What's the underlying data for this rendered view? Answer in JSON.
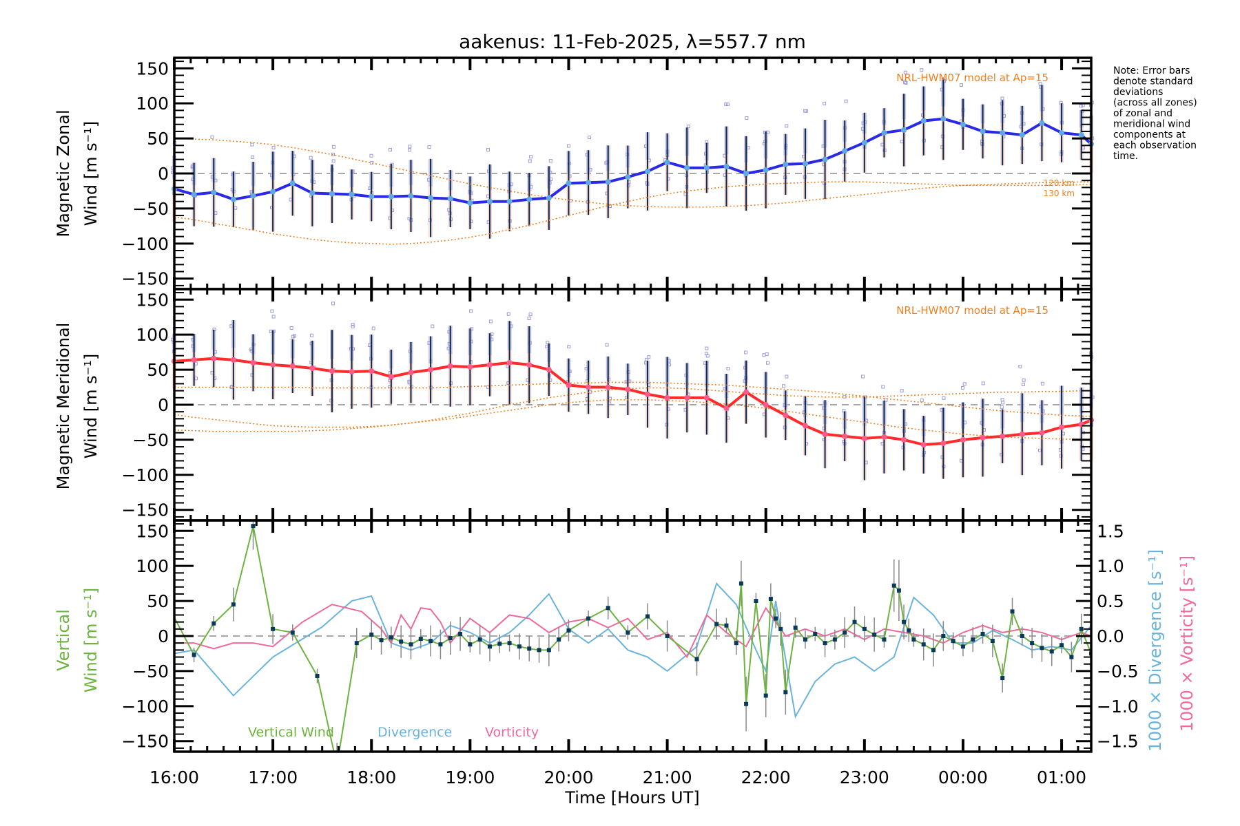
{
  "chart_data": [
    {
      "type": "line",
      "panel": "zonal",
      "title": "aakenus: 11-Feb-2025, λ=557.7 nm",
      "ylabel_line1": "Magnetic Zonal",
      "ylabel_line2": "Wind [m s⁻¹]",
      "ylim": [
        -165,
        165
      ],
      "yticks": [
        -150,
        -100,
        -50,
        0,
        50,
        100,
        150
      ],
      "model_label": "NRL-HWM07 model at Ap=15",
      "model_height_labels": [
        "120 km",
        "130 km"
      ],
      "x": [
        16.0,
        16.2,
        16.4,
        16.6,
        16.8,
        17.0,
        17.2,
        17.4,
        17.6,
        17.8,
        18.0,
        18.2,
        18.4,
        18.6,
        18.8,
        19.0,
        19.2,
        19.4,
        19.6,
        19.8,
        20.0,
        20.2,
        20.4,
        20.6,
        20.8,
        21.0,
        21.2,
        21.4,
        21.6,
        21.8,
        22.0,
        22.2,
        22.4,
        22.6,
        22.8,
        23.0,
        23.2,
        23.4,
        23.6,
        23.8,
        24.0,
        24.2,
        24.4,
        24.6,
        24.8,
        25.0,
        25.2,
        25.3
      ],
      "series": [
        {
          "name": "Zonal wind",
          "color": "#2a2ae6",
          "values": [
            -22,
            -30,
            -27,
            -37,
            -32,
            -26,
            -14,
            -28,
            -29,
            -30,
            -33,
            -33,
            -32,
            -35,
            -36,
            -42,
            -40,
            -40,
            -37,
            -35,
            -14,
            -13,
            -12,
            -5,
            3,
            16,
            8,
            8,
            10,
            0,
            5,
            13,
            14,
            20,
            32,
            44,
            58,
            62,
            75,
            78,
            70,
            60,
            58,
            55,
            72,
            58,
            55,
            42
          ]
        },
        {
          "name": "Model 120 km",
          "color": "#f08020",
          "values": [
            50,
            49,
            48,
            46,
            44,
            41,
            37,
            32,
            27,
            21,
            15,
            9,
            3,
            -3,
            -9,
            -15,
            -20,
            -25,
            -30,
            -34,
            -38,
            -41,
            -44,
            -46,
            -47,
            -48,
            -48,
            -48,
            -47,
            -46,
            -44,
            -42,
            -39,
            -36,
            -33,
            -30,
            -27,
            -24,
            -21,
            -19,
            -17,
            -16,
            -15,
            -14,
            -13,
            -13,
            -12,
            -12
          ]
        },
        {
          "name": "Model 130 km",
          "color": "#f08020",
          "values": [
            -62,
            -66,
            -71,
            -76,
            -81,
            -86,
            -90,
            -94,
            -97,
            -99,
            -100,
            -101,
            -100,
            -98,
            -95,
            -91,
            -86,
            -80,
            -74,
            -67,
            -60,
            -53,
            -46,
            -40,
            -34,
            -29,
            -25,
            -22,
            -19,
            -17,
            -15,
            -14,
            -13,
            -12,
            -12,
            -12,
            -13,
            -14,
            -15,
            -16,
            -17,
            -17,
            -17,
            -17,
            -17,
            -17,
            -16,
            -16
          ]
        }
      ]
    },
    {
      "type": "line",
      "panel": "meridional",
      "ylabel_line1": "Magnetic Meridional",
      "ylabel_line2": "Wind [m s⁻¹]",
      "ylim": [
        -165,
        165
      ],
      "yticks": [
        -150,
        -100,
        -50,
        0,
        50,
        100,
        150
      ],
      "model_label": "NRL-HWM07 model at Ap=15",
      "x": [
        16.0,
        16.2,
        16.4,
        16.6,
        16.8,
        17.0,
        17.2,
        17.4,
        17.6,
        17.8,
        18.0,
        18.2,
        18.4,
        18.6,
        18.8,
        19.0,
        19.2,
        19.4,
        19.6,
        19.8,
        20.0,
        20.2,
        20.4,
        20.6,
        20.8,
        21.0,
        21.2,
        21.4,
        21.6,
        21.8,
        22.0,
        22.2,
        22.4,
        22.6,
        22.8,
        23.0,
        23.2,
        23.4,
        23.6,
        23.8,
        24.0,
        24.2,
        24.4,
        24.6,
        24.8,
        25.0,
        25.2,
        25.3
      ],
      "series": [
        {
          "name": "Meridional wind",
          "color": "#ff2a2a",
          "values": [
            62,
            64,
            66,
            64,
            60,
            57,
            55,
            52,
            48,
            47,
            48,
            40,
            46,
            50,
            55,
            54,
            57,
            60,
            57,
            50,
            28,
            25,
            25,
            22,
            15,
            10,
            10,
            10,
            -5,
            18,
            0,
            -15,
            -30,
            -42,
            -45,
            -48,
            -46,
            -50,
            -57,
            -55,
            -50,
            -47,
            -45,
            -42,
            -40,
            -32,
            -28,
            -22
          ]
        },
        {
          "name": "Model 120 km",
          "color": "#f08020",
          "values": [
            25,
            25,
            25,
            25,
            25,
            25,
            25,
            24,
            24,
            24,
            24,
            24,
            24,
            24,
            25,
            26,
            27,
            28,
            29,
            30,
            31,
            31,
            32,
            32,
            32,
            31,
            30,
            29,
            28,
            26,
            24,
            22,
            20,
            18,
            15,
            12,
            9,
            6,
            3,
            0,
            -3,
            -6,
            -9,
            -11,
            -13,
            -15,
            -16,
            -17
          ]
        },
        {
          "name": "Model 130 km",
          "color": "#f08020",
          "values": [
            -14,
            -18,
            -21,
            -24,
            -27,
            -30,
            -31,
            -32,
            -32,
            -32,
            -31,
            -29,
            -26,
            -22,
            -17,
            -12,
            -6,
            0,
            5,
            10,
            14,
            18,
            21,
            23,
            24,
            24,
            23,
            21,
            19,
            17,
            15,
            13,
            12,
            11,
            11,
            11,
            12,
            13,
            14,
            15,
            16,
            17,
            18,
            18,
            19,
            19,
            20,
            20
          ]
        },
        {
          "name": "Model low",
          "color": "#f08020",
          "values": [
            -36,
            -37,
            -38,
            -38,
            -38,
            -38,
            -38,
            -37,
            -36,
            -34,
            -32,
            -29,
            -26,
            -23,
            -20,
            -16,
            -12,
            -8,
            -4,
            0,
            3,
            5,
            7,
            7,
            7,
            6,
            5,
            3,
            1,
            -2,
            -5,
            -9,
            -13,
            -17,
            -21,
            -25,
            -29,
            -33,
            -36,
            -39,
            -42,
            -44,
            -46,
            -47,
            -48,
            -49,
            -49,
            -50
          ]
        }
      ]
    },
    {
      "type": "line",
      "panel": "vertical",
      "ylabel_line1": "Vertical",
      "ylabel_line2": "Wind [m s⁻¹]",
      "right_ylabel_div": "1000 × Divergence [s⁻¹]",
      "right_ylabel_vort": "1000 × Vorticity [s⁻¹]",
      "ylim": [
        -165,
        165
      ],
      "yticks": [
        -150,
        -100,
        -50,
        0,
        50,
        100,
        150
      ],
      "y2lim": [
        -1.65,
        1.65
      ],
      "y2ticks": [
        "-1.5",
        "-1.0",
        "-0.5",
        "0.0",
        "0.5",
        "1.0",
        "1.5"
      ],
      "xlabel": "Time [Hours UT]",
      "xticks": [
        "16:00",
        "17:00",
        "18:00",
        "19:00",
        "20:00",
        "21:00",
        "22:00",
        "23:00",
        "00:00",
        "01:00"
      ],
      "xlim": [
        16.0,
        25.3
      ],
      "legend": [
        "Vertical Wind",
        "Divergence",
        "Vorticity"
      ],
      "vertical": {
        "color": "#6db33f",
        "x": [
          15.95,
          16.2,
          16.4,
          16.6,
          16.8,
          17.0,
          17.2,
          17.45,
          17.65,
          17.85,
          18.0,
          18.1,
          18.2,
          18.3,
          18.4,
          18.5,
          18.6,
          18.7,
          18.8,
          18.9,
          19.0,
          19.1,
          19.2,
          19.3,
          19.4,
          19.5,
          19.6,
          19.7,
          19.8,
          19.9,
          20.0,
          20.2,
          20.4,
          20.6,
          20.8,
          21.0,
          21.3,
          21.5,
          21.6,
          21.7,
          21.75,
          21.8,
          21.9,
          22.0,
          22.05,
          22.1,
          22.15,
          22.2,
          22.3,
          22.4,
          22.5,
          22.6,
          22.7,
          22.8,
          22.9,
          23.0,
          23.1,
          23.2,
          23.3,
          23.35,
          23.4,
          23.45,
          23.5,
          23.6,
          23.7,
          23.8,
          23.9,
          24.0,
          24.1,
          24.2,
          24.3,
          24.4,
          24.5,
          24.6,
          24.7,
          24.8,
          24.9,
          25.0,
          25.1,
          25.2,
          25.3
        ],
        "values": [
          40,
          -27,
          18,
          45,
          157,
          10,
          5,
          -57,
          -185,
          -10,
          2,
          -6,
          -2,
          -8,
          -12,
          -4,
          -7,
          -12,
          -3,
          3,
          -12,
          -5,
          -15,
          -11,
          -10,
          -15,
          -18,
          -20,
          -20,
          -5,
          8,
          25,
          40,
          5,
          28,
          0,
          -33,
          17,
          15,
          -10,
          75,
          -97,
          50,
          -85,
          53,
          25,
          10,
          -80,
          12,
          -5,
          3,
          -10,
          -5,
          5,
          20,
          10,
          2,
          -5,
          72,
          65,
          20,
          8,
          -5,
          -12,
          -20,
          0,
          -7,
          -15,
          -5,
          3,
          -7,
          -60,
          35,
          0,
          -10,
          -17,
          -22,
          -13,
          -30,
          10,
          -25
        ]
      },
      "divergence": {
        "color": "#6ab4dc",
        "x": [
          16.0,
          16.2,
          16.6,
          17.0,
          17.5,
          17.8,
          18.0,
          18.2,
          18.4,
          18.6,
          18.8,
          19.0,
          19.2,
          19.4,
          19.6,
          19.8,
          20.0,
          20.2,
          20.4,
          20.6,
          20.8,
          21.0,
          21.3,
          21.5,
          21.7,
          21.9,
          22.0,
          22.1,
          22.3,
          22.5,
          22.7,
          22.9,
          23.1,
          23.3,
          23.5,
          23.7,
          23.9,
          24.1,
          24.3,
          24.5,
          24.7,
          24.9,
          25.1,
          25.3
        ],
        "values": [
          -0.25,
          -0.2,
          -0.85,
          -0.3,
          0.13,
          0.5,
          0.57,
          -0.1,
          -0.2,
          -0.1,
          0.15,
          0.05,
          -0.1,
          0.05,
          0.3,
          0.6,
          0.1,
          -0.1,
          0.1,
          -0.2,
          -0.3,
          -0.5,
          -0.15,
          0.75,
          0.45,
          -0.2,
          -0.5,
          0.5,
          -1.15,
          -0.65,
          -0.4,
          -0.3,
          -0.5,
          -0.3,
          0.55,
          0.3,
          -0.1,
          -0.1,
          0.08,
          -0.05,
          -0.2,
          -0.15,
          -0.2,
          0.15
        ]
      },
      "vorticity": {
        "color": "#f0699b",
        "x": [
          16.0,
          16.2,
          16.4,
          16.6,
          16.8,
          17.0,
          17.3,
          17.6,
          17.9,
          18.1,
          18.2,
          18.3,
          18.4,
          18.5,
          18.6,
          18.7,
          18.8,
          19.0,
          19.2,
          19.4,
          19.6,
          19.8,
          20.0,
          20.2,
          20.4,
          20.6,
          20.8,
          21.0,
          21.2,
          21.4,
          21.6,
          21.8,
          22.0,
          22.2,
          22.4,
          22.6,
          22.8,
          23.0,
          23.2,
          23.4,
          23.6,
          23.8,
          24.0,
          24.2,
          24.4,
          24.6,
          24.8,
          25.0,
          25.2,
          25.3
        ],
        "values": [
          -0.1,
          -0.1,
          -0.18,
          -0.1,
          -0.1,
          -0.15,
          0.2,
          0.45,
          0.35,
          0.1,
          -0.1,
          0.3,
          0.1,
          0.4,
          0.38,
          0.2,
          -0.1,
          0.25,
          0.05,
          0.3,
          0.25,
          0.05,
          0.2,
          0.25,
          0.12,
          0.25,
          -0.05,
          0.05,
          -0.3,
          0.3,
          0.05,
          -0.15,
          0.4,
          0.0,
          0.1,
          0.0,
          0.1,
          -0.05,
          0.1,
          0.05,
          0.0,
          -0.1,
          0.05,
          0.15,
          0.05,
          0.1,
          0.05,
          -0.05,
          0.05,
          0.0
        ]
      }
    }
  ],
  "note": [
    "Note: Error bars",
    "denote standard",
    "deviations",
    "(across all zones)",
    "of zonal and",
    "meridional wind",
    "components at",
    "each observation",
    "time."
  ],
  "colors": {
    "model": "#f08020",
    "zonal": "#2a2ae6",
    "zonal_marker": "#5fa8e0",
    "meridional": "#ff2a2a",
    "meridional_marker": "#ff5a8a",
    "errorbar": "#0a2a4a",
    "scatter": "#9a9ad8",
    "vertical": "#6db33f",
    "divergence": "#6ab4dc",
    "vorticity": "#f0699b"
  }
}
